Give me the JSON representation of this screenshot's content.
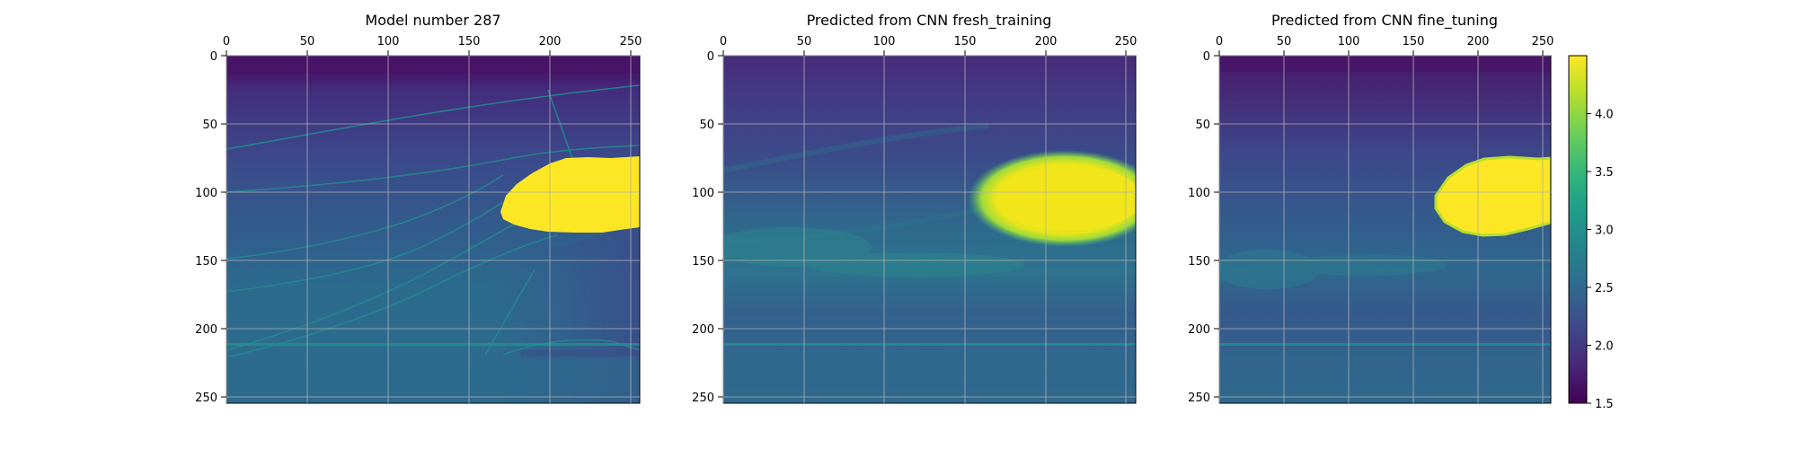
{
  "chart_data": [
    {
      "type": "heatmap",
      "title": "Model number 287",
      "xlim": [
        0,
        256
      ],
      "ylim": [
        256,
        0
      ],
      "xticks": [
        "0",
        "50",
        "100",
        "150",
        "200",
        "250"
      ],
      "yticks": [
        "0",
        "50",
        "100",
        "150",
        "200",
        "250"
      ],
      "x_axis_position": "top",
      "grid": true,
      "colormap": "viridis",
      "value_range": [
        1.5,
        4.5
      ],
      "description_values": {
        "top_layer": 1.7,
        "background_gradient": [
          1.9,
          2.6
        ],
        "bottom_layer": 2.55,
        "high_anomaly": 4.5,
        "anomaly_center": [
          210,
          103
        ]
      }
    },
    {
      "type": "heatmap",
      "title": "Predicted from CNN fresh_training",
      "xlim": [
        0,
        256
      ],
      "ylim": [
        256,
        0
      ],
      "xticks": [
        "0",
        "50",
        "100",
        "150",
        "200",
        "250"
      ],
      "yticks": [
        "0",
        "50",
        "100",
        "150",
        "200",
        "250"
      ],
      "x_axis_position": "top",
      "grid": true,
      "colormap": "viridis",
      "value_range": [
        1.5,
        4.5
      ],
      "description_values": {
        "top_layer": 1.9,
        "background_gradient": [
          2.0,
          2.7
        ],
        "bottom_layer": 2.55,
        "high_anomaly": 4.4,
        "anomaly_center": [
          215,
          110
        ]
      }
    },
    {
      "type": "heatmap",
      "title": "Predicted from CNN fine_tuning",
      "xlim": [
        0,
        256
      ],
      "ylim": [
        256,
        0
      ],
      "xticks": [
        "0",
        "50",
        "100",
        "150",
        "200",
        "250"
      ],
      "yticks": [
        "0",
        "50",
        "100",
        "150",
        "200",
        "250"
      ],
      "x_axis_position": "top",
      "grid": true,
      "colormap": "viridis",
      "value_range": [
        1.5,
        4.5
      ],
      "description_values": {
        "top_layer": 1.75,
        "background_gradient": [
          1.95,
          2.6
        ],
        "bottom_layer": 2.55,
        "high_anomaly": 4.45,
        "anomaly_center": [
          215,
          103
        ]
      }
    }
  ],
  "colorbar": {
    "min": 1.5,
    "max": 4.5,
    "ticks": [
      "1.5",
      "2.0",
      "2.5",
      "3.0",
      "3.5",
      "4.0"
    ],
    "tick_values": [
      1.5,
      2.0,
      2.5,
      3.0,
      3.5,
      4.0
    ],
    "colors": [
      "#440154",
      "#482878",
      "#3e4a89",
      "#31688e",
      "#26828e",
      "#1f9e89",
      "#35b779",
      "#6ece58",
      "#b5de2b",
      "#fde725"
    ]
  }
}
